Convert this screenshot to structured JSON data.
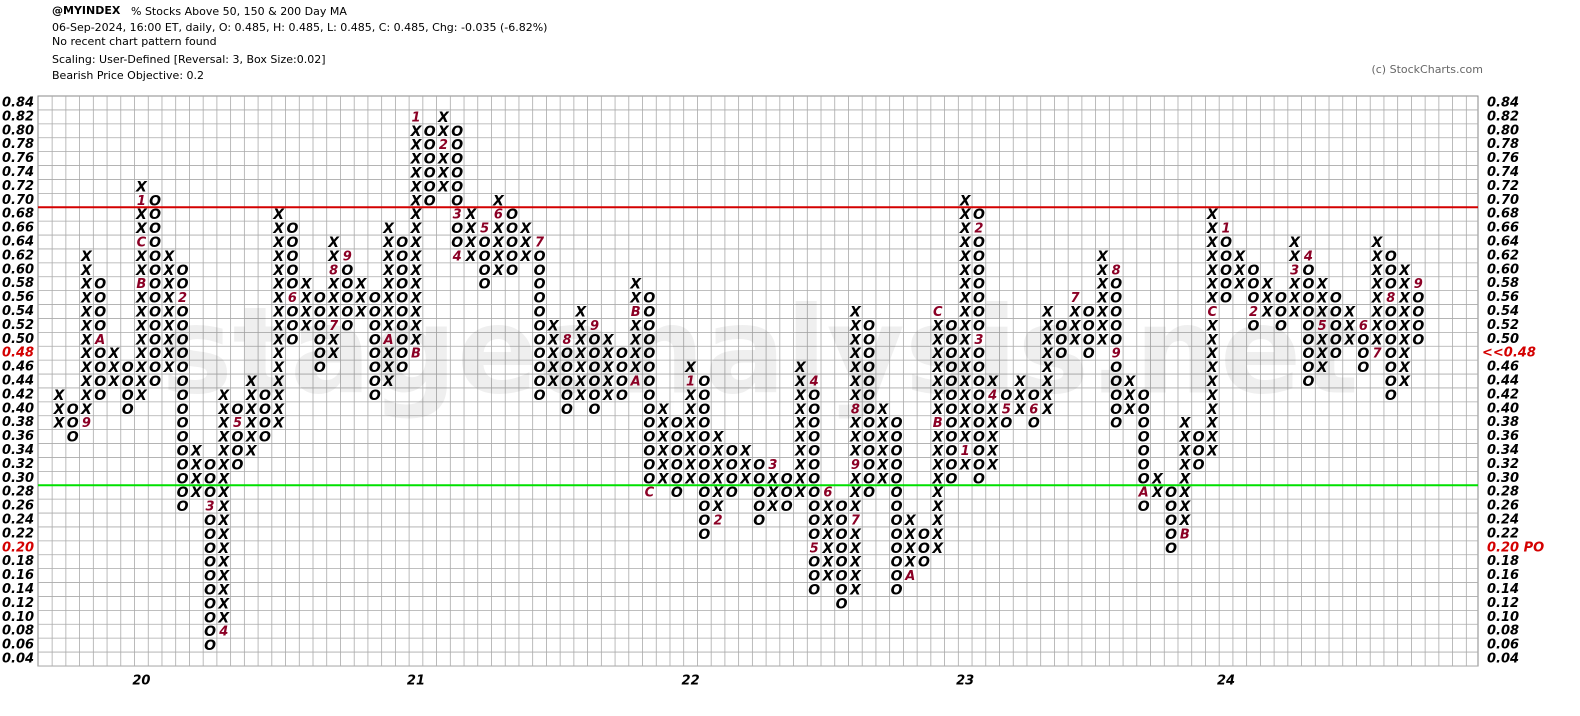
{
  "chart_data": {
    "type": "point_and_figure",
    "title": "@MYINDEX",
    "subtitle": "% Stocks Above 50, 150 & 200 Day MA",
    "info_lines": [
      "06-Sep-2024, 16:00 ET, daily, O: 0.485, H: 0.485, L: 0.485, C: 0.485, Chg: -0.035 (-6.82%)",
      "No recent chart pattern found",
      "Scaling: User-Defined [Reversal: 3, Box Size:0.02]",
      "Bearish Price Objective: 0.2"
    ],
    "copyright": "(c) StockCharts.com",
    "watermark": "stageanalysis.net",
    "box_size": 0.02,
    "ylim": [
      0.04,
      0.84
    ],
    "yticks": [
      0.04,
      0.06,
      0.08,
      {
        "value": 0.1,
        "label": "0.10"
      },
      0.12,
      0.14,
      0.16,
      0.18,
      {
        "value": 0.2,
        "label": "0.20"
      },
      0.22,
      0.24,
      0.26,
      0.28,
      {
        "value": 0.3,
        "label": "0.30"
      },
      0.32,
      0.34,
      0.36,
      0.38,
      {
        "value": 0.4,
        "label": "0.40"
      },
      0.42,
      0.44,
      0.46,
      0.48,
      {
        "value": 0.5,
        "label": "0.50"
      },
      0.52,
      0.54,
      0.56,
      0.58,
      {
        "value": 0.6,
        "label": "0.60"
      },
      0.62,
      0.64,
      0.66,
      0.68,
      {
        "value": 0.7,
        "label": "0.70"
      },
      0.72,
      0.74,
      0.76,
      0.78,
      {
        "value": 0.8,
        "label": "0.80"
      },
      0.82,
      0.84
    ],
    "resistance_line": {
      "value": 0.7,
      "color": "#d40000"
    },
    "support_line": {
      "value": 0.3,
      "color": "#00e000"
    },
    "last_price": {
      "value": 0.48,
      "label": "<<0.48"
    },
    "price_objective": {
      "value": 0.2,
      "label": "0.20 PO"
    },
    "year_labels": [
      {
        "column": 6,
        "label": "20"
      },
      {
        "column": 26,
        "label": "21"
      },
      {
        "column": 46,
        "label": "22"
      },
      {
        "column": 66,
        "label": "23"
      },
      {
        "column": 85,
        "label": "24"
      }
    ],
    "symbol_color": "#000000",
    "marker_color": "#8b0025",
    "columns": [
      {
        "kind": "X",
        "low": 0.38,
        "high": 0.42
      },
      {
        "kind": "O",
        "low": 0.36,
        "high": 0.4
      },
      {
        "kind": "X",
        "low": 0.38,
        "high": 0.62
      },
      {
        "kind": "O",
        "low": 0.42,
        "high": 0.58
      },
      {
        "kind": "X",
        "low": 0.44,
        "high": 0.48
      },
      {
        "kind": "O",
        "low": 0.4,
        "high": 0.46
      },
      {
        "kind": "X",
        "low": 0.42,
        "high": 0.72
      },
      {
        "kind": "O",
        "low": 0.44,
        "high": 0.7
      },
      {
        "kind": "X",
        "low": 0.46,
        "high": 0.62
      },
      {
        "kind": "O",
        "low": 0.26,
        "high": 0.6
      },
      {
        "kind": "X",
        "low": 0.28,
        "high": 0.34
      },
      {
        "kind": "O",
        "low": 0.06,
        "high": 0.32
      },
      {
        "kind": "X",
        "low": 0.08,
        "high": 0.42
      },
      {
        "kind": "O",
        "low": 0.32,
        "high": 0.4
      },
      {
        "kind": "X",
        "low": 0.34,
        "high": 0.44
      },
      {
        "kind": "O",
        "low": 0.36,
        "high": 0.42
      },
      {
        "kind": "X",
        "low": 0.38,
        "high": 0.68
      },
      {
        "kind": "O",
        "low": 0.5,
        "high": 0.66
      },
      {
        "kind": "X",
        "low": 0.52,
        "high": 0.58
      },
      {
        "kind": "O",
        "low": 0.46,
        "high": 0.56
      },
      {
        "kind": "X",
        "low": 0.48,
        "high": 0.64
      },
      {
        "kind": "O",
        "low": 0.52,
        "high": 0.62
      },
      {
        "kind": "X",
        "low": 0.54,
        "high": 0.58
      },
      {
        "kind": "O",
        "low": 0.42,
        "high": 0.56
      },
      {
        "kind": "X",
        "low": 0.44,
        "high": 0.66
      },
      {
        "kind": "O",
        "low": 0.46,
        "high": 0.64
      },
      {
        "kind": "X",
        "low": 0.48,
        "high": 0.82
      },
      {
        "kind": "O",
        "low": 0.7,
        "high": 0.8
      },
      {
        "kind": "X",
        "low": 0.72,
        "high": 0.82
      },
      {
        "kind": "O",
        "low": 0.62,
        "high": 0.8
      },
      {
        "kind": "X",
        "low": 0.62,
        "high": 0.68
      },
      {
        "kind": "O",
        "low": 0.58,
        "high": 0.66
      },
      {
        "kind": "X",
        "low": 0.6,
        "high": 0.7
      },
      {
        "kind": "O",
        "low": 0.6,
        "high": 0.68
      },
      {
        "kind": "X",
        "low": 0.62,
        "high": 0.66
      },
      {
        "kind": "O",
        "low": 0.42,
        "high": 0.64
      },
      {
        "kind": "X",
        "low": 0.44,
        "high": 0.52
      },
      {
        "kind": "O",
        "low": 0.4,
        "high": 0.5
      },
      {
        "kind": "X",
        "low": 0.42,
        "high": 0.54
      },
      {
        "kind": "O",
        "low": 0.4,
        "high": 0.52
      },
      {
        "kind": "X",
        "low": 0.42,
        "high": 0.5
      },
      {
        "kind": "O",
        "low": 0.42,
        "high": 0.48
      },
      {
        "kind": "X",
        "low": 0.44,
        "high": 0.58
      },
      {
        "kind": "O",
        "low": 0.28,
        "high": 0.56
      },
      {
        "kind": "X",
        "low": 0.3,
        "high": 0.4
      },
      {
        "kind": "O",
        "low": 0.28,
        "high": 0.38
      },
      {
        "kind": "X",
        "low": 0.3,
        "high": 0.46
      },
      {
        "kind": "O",
        "low": 0.22,
        "high": 0.44
      },
      {
        "kind": "X",
        "low": 0.24,
        "high": 0.36
      },
      {
        "kind": "O",
        "low": 0.28,
        "high": 0.34
      },
      {
        "kind": "X",
        "low": 0.3,
        "high": 0.34
      },
      {
        "kind": "O",
        "low": 0.24,
        "high": 0.32
      },
      {
        "kind": "X",
        "low": 0.26,
        "high": 0.32
      },
      {
        "kind": "O",
        "low": 0.26,
        "high": 0.3
      },
      {
        "kind": "X",
        "low": 0.28,
        "high": 0.46
      },
      {
        "kind": "O",
        "low": 0.14,
        "high": 0.44
      },
      {
        "kind": "X",
        "low": 0.16,
        "high": 0.28
      },
      {
        "kind": "O",
        "low": 0.12,
        "high": 0.26
      },
      {
        "kind": "X",
        "low": 0.14,
        "high": 0.54
      },
      {
        "kind": "O",
        "low": 0.28,
        "high": 0.52
      },
      {
        "kind": "X",
        "low": 0.3,
        "high": 0.4
      },
      {
        "kind": "O",
        "low": 0.14,
        "high": 0.38
      },
      {
        "kind": "X",
        "low": 0.16,
        "high": 0.24
      },
      {
        "kind": "O",
        "low": 0.18,
        "high": 0.22
      },
      {
        "kind": "X",
        "low": 0.2,
        "high": 0.54
      },
      {
        "kind": "O",
        "low": 0.3,
        "high": 0.52
      },
      {
        "kind": "X",
        "low": 0.32,
        "high": 0.7
      },
      {
        "kind": "O",
        "low": 0.3,
        "high": 0.68
      },
      {
        "kind": "X",
        "low": 0.32,
        "high": 0.44
      },
      {
        "kind": "O",
        "low": 0.38,
        "high": 0.42
      },
      {
        "kind": "X",
        "low": 0.4,
        "high": 0.44
      },
      {
        "kind": "O",
        "low": 0.38,
        "high": 0.42
      },
      {
        "kind": "X",
        "low": 0.4,
        "high": 0.54
      },
      {
        "kind": "O",
        "low": 0.48,
        "high": 0.52
      },
      {
        "kind": "X",
        "low": 0.5,
        "high": 0.56
      },
      {
        "kind": "O",
        "low": 0.48,
        "high": 0.54
      },
      {
        "kind": "X",
        "low": 0.5,
        "high": 0.62
      },
      {
        "kind": "O",
        "low": 0.38,
        "high": 0.6
      },
      {
        "kind": "X",
        "low": 0.4,
        "high": 0.44
      },
      {
        "kind": "O",
        "low": 0.26,
        "high": 0.42
      },
      {
        "kind": "X",
        "low": 0.28,
        "high": 0.3
      },
      {
        "kind": "O",
        "low": 0.2,
        "high": 0.28
      },
      {
        "kind": "X",
        "low": 0.22,
        "high": 0.38
      },
      {
        "kind": "O",
        "low": 0.32,
        "high": 0.36
      },
      {
        "kind": "X",
        "low": 0.34,
        "high": 0.68
      },
      {
        "kind": "O",
        "low": 0.56,
        "high": 0.66
      },
      {
        "kind": "X",
        "low": 0.58,
        "high": 0.62
      },
      {
        "kind": "O",
        "low": 0.52,
        "high": 0.6
      },
      {
        "kind": "X",
        "low": 0.54,
        "high": 0.58
      },
      {
        "kind": "O",
        "low": 0.52,
        "high": 0.56
      },
      {
        "kind": "X",
        "low": 0.54,
        "high": 0.64
      },
      {
        "kind": "O",
        "low": 0.44,
        "high": 0.62
      },
      {
        "kind": "X",
        "low": 0.46,
        "high": 0.58
      },
      {
        "kind": "O",
        "low": 0.48,
        "high": 0.56
      },
      {
        "kind": "X",
        "low": 0.5,
        "high": 0.54
      },
      {
        "kind": "O",
        "low": 0.46,
        "high": 0.52
      },
      {
        "kind": "X",
        "low": 0.48,
        "high": 0.64
      },
      {
        "kind": "O",
        "low": 0.42,
        "high": 0.62
      },
      {
        "kind": "X",
        "low": 0.44,
        "high": 0.6
      },
      {
        "kind": "O",
        "low": 0.5,
        "high": 0.58
      }
    ],
    "markers": [
      {
        "column": 2,
        "value": 0.38,
        "label": "9"
      },
      {
        "column": 3,
        "value": 0.5,
        "label": "A"
      },
      {
        "column": 6,
        "value": 0.7,
        "label": "1"
      },
      {
        "column": 6,
        "value": 0.64,
        "label": "C"
      },
      {
        "column": 6,
        "value": 0.58,
        "label": "B"
      },
      {
        "column": 9,
        "value": 0.56,
        "label": "2"
      },
      {
        "column": 11,
        "value": 0.26,
        "label": "3"
      },
      {
        "column": 12,
        "value": 0.08,
        "label": "4"
      },
      {
        "column": 13,
        "value": 0.38,
        "label": "5"
      },
      {
        "column": 17,
        "value": 0.56,
        "label": "6"
      },
      {
        "column": 20,
        "value": 0.52,
        "label": "7"
      },
      {
        "column": 20,
        "value": 0.6,
        "label": "8"
      },
      {
        "column": 21,
        "value": 0.62,
        "label": "9"
      },
      {
        "column": 24,
        "value": 0.5,
        "label": "A"
      },
      {
        "column": 26,
        "value": 0.48,
        "label": "B"
      },
      {
        "column": 26,
        "value": 0.82,
        "label": "1"
      },
      {
        "column": 28,
        "value": 0.78,
        "label": "2"
      },
      {
        "column": 29,
        "value": 0.68,
        "label": "3"
      },
      {
        "column": 29,
        "value": 0.62,
        "label": "4"
      },
      {
        "column": 31,
        "value": 0.66,
        "label": "5"
      },
      {
        "column": 32,
        "value": 0.68,
        "label": "6"
      },
      {
        "column": 35,
        "value": 0.64,
        "label": "7"
      },
      {
        "column": 37,
        "value": 0.5,
        "label": "8"
      },
      {
        "column": 39,
        "value": 0.52,
        "label": "9"
      },
      {
        "column": 42,
        "value": 0.44,
        "label": "A"
      },
      {
        "column": 42,
        "value": 0.54,
        "label": "B"
      },
      {
        "column": 43,
        "value": 0.28,
        "label": "C"
      },
      {
        "column": 46,
        "value": 0.44,
        "label": "1"
      },
      {
        "column": 48,
        "value": 0.24,
        "label": "2"
      },
      {
        "column": 52,
        "value": 0.32,
        "label": "3"
      },
      {
        "column": 55,
        "value": 0.44,
        "label": "4"
      },
      {
        "column": 55,
        "value": 0.2,
        "label": "5"
      },
      {
        "column": 56,
        "value": 0.28,
        "label": "6"
      },
      {
        "column": 58,
        "value": 0.24,
        "label": "7"
      },
      {
        "column": 58,
        "value": 0.4,
        "label": "8"
      },
      {
        "column": 58,
        "value": 0.32,
        "label": "9"
      },
      {
        "column": 62,
        "value": 0.16,
        "label": "A"
      },
      {
        "column": 64,
        "value": 0.38,
        "label": "B"
      },
      {
        "column": 64,
        "value": 0.54,
        "label": "C"
      },
      {
        "column": 66,
        "value": 0.34,
        "label": "1"
      },
      {
        "column": 67,
        "value": 0.66,
        "label": "2"
      },
      {
        "column": 67,
        "value": 0.5,
        "label": "3"
      },
      {
        "column": 68,
        "value": 0.42,
        "label": "4"
      },
      {
        "column": 69,
        "value": 0.4,
        "label": "5"
      },
      {
        "column": 71,
        "value": 0.4,
        "label": "6"
      },
      {
        "column": 74,
        "value": 0.56,
        "label": "7"
      },
      {
        "column": 77,
        "value": 0.6,
        "label": "8"
      },
      {
        "column": 77,
        "value": 0.48,
        "label": "9"
      },
      {
        "column": 79,
        "value": 0.28,
        "label": "A"
      },
      {
        "column": 82,
        "value": 0.22,
        "label": "B"
      },
      {
        "column": 84,
        "value": 0.54,
        "label": "C"
      },
      {
        "column": 85,
        "value": 0.66,
        "label": "1"
      },
      {
        "column": 87,
        "value": 0.54,
        "label": "2"
      },
      {
        "column": 90,
        "value": 0.6,
        "label": "3"
      },
      {
        "column": 91,
        "value": 0.62,
        "label": "4"
      },
      {
        "column": 92,
        "value": 0.52,
        "label": "5"
      },
      {
        "column": 95,
        "value": 0.52,
        "label": "6"
      },
      {
        "column": 96,
        "value": 0.48,
        "label": "7"
      },
      {
        "column": 97,
        "value": 0.56,
        "label": "8"
      },
      {
        "column": 99,
        "value": 0.58,
        "label": "9"
      }
    ]
  }
}
